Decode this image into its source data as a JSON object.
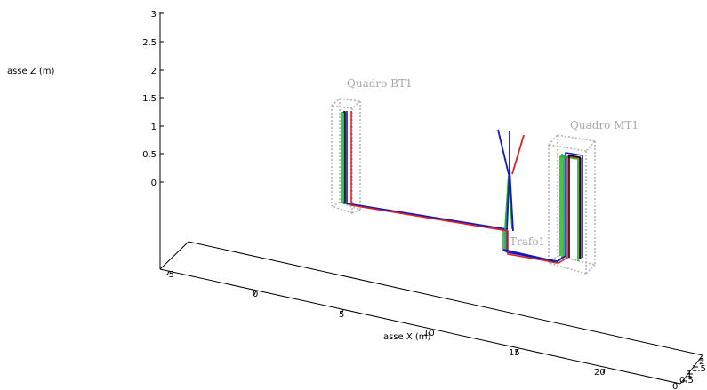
{
  "axes": {
    "z_label": "asse Z (m)",
    "x_label": "asse X (m)",
    "z_ticks": [
      "3",
      "2.5",
      "2",
      "1.5",
      "1",
      "0.5",
      "0"
    ],
    "x_ticks": [
      "-5",
      "0",
      "5",
      "10",
      "15",
      "20"
    ],
    "y_ticks": [
      "2",
      "1.5",
      "1",
      "0.5",
      "0"
    ]
  },
  "objects": {
    "quadro_bt1": "Quadro BT1",
    "quadro_mt1": "Quadro MT1",
    "trafo1": "Trafo1"
  },
  "colors": {
    "axis": "#000000",
    "grid": "#000000",
    "box": "#b4b4b4",
    "object_label": "#a8a8a8",
    "conductor_red": "#e02020",
    "conductor_blue": "#1414c8",
    "conductor_green": "#1eb41e",
    "conductor_black": "#000000",
    "conductor_teal": "#148c8c"
  }
}
